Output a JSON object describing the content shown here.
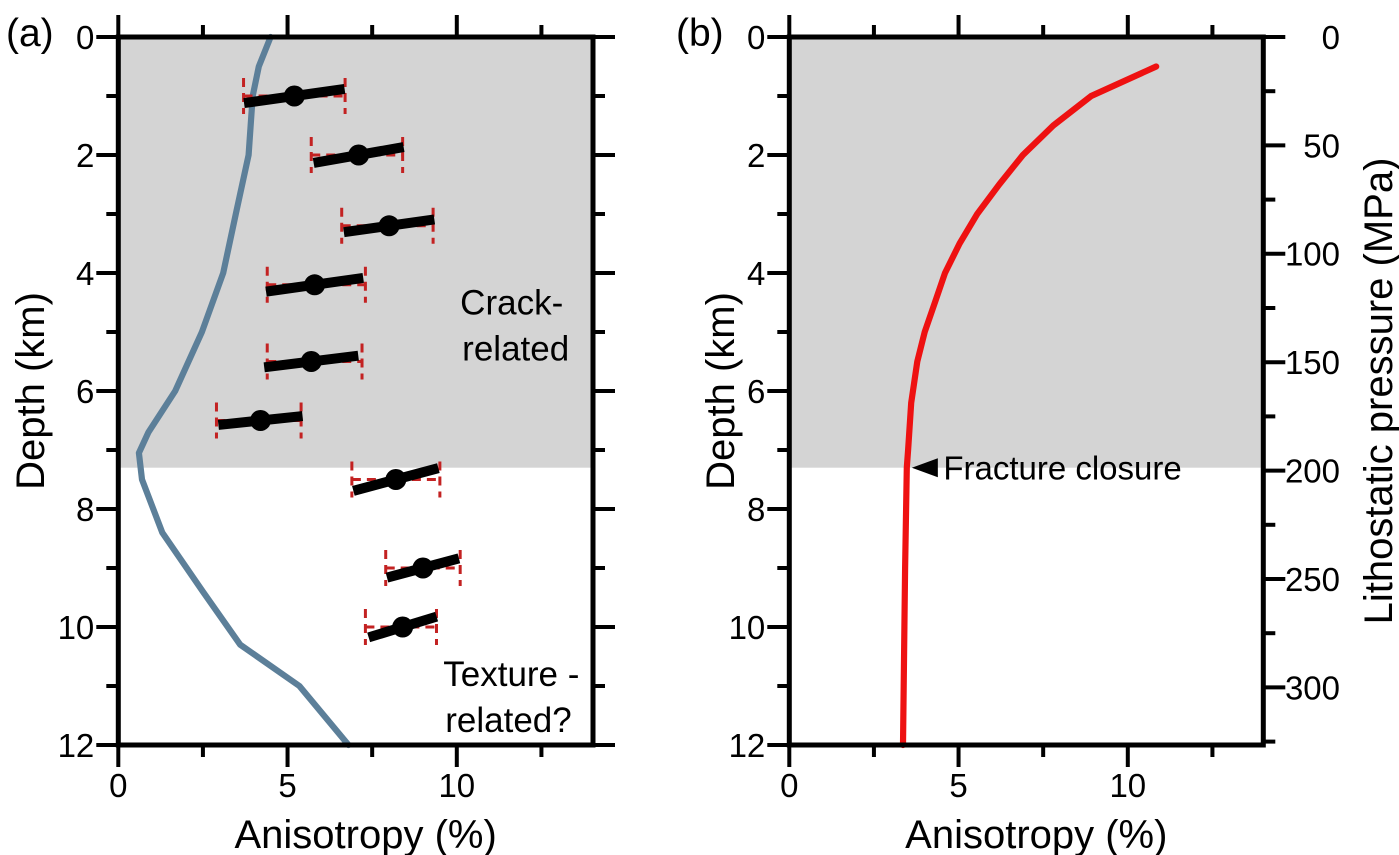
{
  "figure": {
    "panel_a_label": "(a)",
    "panel_b_label": "(b)"
  },
  "colors": {
    "background": "#ffffff",
    "shaded_region": "#d4d4d4",
    "model_curve_blue": "#5c7f99",
    "crack_model_red": "#ee1111",
    "errorbar_red": "#c32222",
    "marker_black": "#000000",
    "axis_black": "#000000"
  },
  "chart_data": [
    {
      "panel": "a",
      "type": "line",
      "title": "",
      "xlabel": "Anisotropy (%)",
      "ylabel": "Depth (km)",
      "xlim": [
        0,
        14
      ],
      "ylim": [
        12,
        0
      ],
      "grid": false,
      "x_ticks": {
        "values": [
          0,
          5,
          10
        ],
        "labels": [
          "0",
          "5",
          "10"
        ],
        "minor": [
          2.5,
          7.5,
          12.5
        ]
      },
      "y_ticks": {
        "values": [
          0,
          2,
          4,
          6,
          8,
          10,
          12
        ],
        "labels": [
          "0",
          "2",
          "4",
          "6",
          "8",
          "10",
          "12"
        ],
        "minor": [
          1,
          3,
          5,
          7,
          9,
          11
        ]
      },
      "shaded_region": {
        "depth_from_km": 0,
        "depth_to_km": 7.3
      },
      "series": [
        {
          "name": "velocity-model-curve",
          "type": "line",
          "color": "#5c7f99",
          "points_anisotropy_depth": [
            [
              4.5,
              0
            ],
            [
              4.15,
              0.5
            ],
            [
              3.97,
              1.0
            ],
            [
              3.85,
              2.0
            ],
            [
              3.47,
              3.0
            ],
            [
              3.1,
              4.0
            ],
            [
              2.47,
              5.0
            ],
            [
              1.68,
              6.0
            ],
            [
              0.89,
              6.7
            ],
            [
              0.61,
              7.05
            ],
            [
              0.7,
              7.5
            ],
            [
              1.3,
              8.4
            ],
            [
              2.5,
              9.4
            ],
            [
              3.6,
              10.3
            ],
            [
              5.35,
              11.0
            ],
            [
              6.8,
              12.0
            ]
          ]
        },
        {
          "name": "anisotropy-measurements",
          "type": "scatter",
          "marker_color": "#000000",
          "errorbar_color": "#c32222",
          "points": [
            {
              "anisotropy_pct": 5.2,
              "depth_km": 1.0,
              "err_low": 3.7,
              "err_high": 6.7,
              "bar_tilt_deg": -8
            },
            {
              "anisotropy_pct": 7.1,
              "depth_km": 2.0,
              "err_low": 5.7,
              "err_high": 8.4,
              "bar_tilt_deg": -10
            },
            {
              "anisotropy_pct": 8.0,
              "depth_km": 3.2,
              "err_low": 6.6,
              "err_high": 9.3,
              "bar_tilt_deg": -8
            },
            {
              "anisotropy_pct": 5.8,
              "depth_km": 4.2,
              "err_low": 4.4,
              "err_high": 7.3,
              "bar_tilt_deg": -8
            },
            {
              "anisotropy_pct": 5.7,
              "depth_km": 5.5,
              "err_low": 4.4,
              "err_high": 7.2,
              "bar_tilt_deg": -7
            },
            {
              "anisotropy_pct": 4.2,
              "depth_km": 6.5,
              "err_low": 2.9,
              "err_high": 5.4,
              "bar_tilt_deg": -6
            },
            {
              "anisotropy_pct": 8.2,
              "depth_km": 7.5,
              "err_low": 6.9,
              "err_high": 9.5,
              "bar_tilt_deg": -15
            },
            {
              "anisotropy_pct": 9.0,
              "depth_km": 9.0,
              "err_low": 7.9,
              "err_high": 10.1,
              "bar_tilt_deg": -15
            },
            {
              "anisotropy_pct": 8.4,
              "depth_km": 10.0,
              "err_low": 7.3,
              "err_high": 9.4,
              "bar_tilt_deg": -17
            }
          ]
        }
      ],
      "annotations": [
        {
          "name": "crack-related-label",
          "lines": [
            "Crack-",
            "related"
          ],
          "x_pct": 10.1,
          "depth_km": 4.7
        },
        {
          "name": "texture-related-label",
          "lines": [
            "Texture -",
            "related?"
          ],
          "x_pct": 9.6,
          "depth_km": 11.0
        }
      ]
    },
    {
      "panel": "b",
      "type": "line",
      "title": "",
      "xlabel": "Anisotropy (%)",
      "ylabel": "Depth (km)",
      "y2label": "Lithostatic pressure (MPa)",
      "xlim": [
        0,
        14
      ],
      "ylim": [
        12,
        0
      ],
      "y2lim_mpa": [
        0,
        326
      ],
      "grid": false,
      "x_ticks": {
        "values": [
          0,
          5,
          10
        ],
        "labels": [
          "0",
          "5",
          "10"
        ],
        "minor": [
          2.5,
          7.5,
          12.5
        ]
      },
      "y_ticks": {
        "values": [
          0,
          2,
          4,
          6,
          8,
          10,
          12
        ],
        "labels": [
          "0",
          "2",
          "4",
          "6",
          "8",
          "10",
          "12"
        ],
        "minor": [
          1,
          3,
          5,
          7,
          9,
          11
        ]
      },
      "y2_ticks": {
        "values": [
          0,
          50,
          100,
          150,
          200,
          250,
          300
        ],
        "labels": [
          "0",
          "50",
          "100",
          "150",
          "200",
          "250",
          "300"
        ],
        "minor": [
          25,
          75,
          125,
          175,
          225,
          275,
          325
        ],
        "mpa_per_km": 27.2
      },
      "shaded_region": {
        "depth_from_km": 0,
        "depth_to_km": 7.3
      },
      "series": [
        {
          "name": "crack-anisotropy-model-curve",
          "type": "line",
          "color": "#ee1111",
          "points_anisotropy_depth": [
            [
              10.84,
              0.5
            ],
            [
              8.92,
              1.0
            ],
            [
              7.8,
              1.5
            ],
            [
              6.9,
              2.0
            ],
            [
              6.2,
              2.5
            ],
            [
              5.55,
              3.0
            ],
            [
              5.03,
              3.5
            ],
            [
              4.6,
              4.0
            ],
            [
              4.3,
              4.5
            ],
            [
              4.0,
              5.0
            ],
            [
              3.78,
              5.5
            ],
            [
              3.6,
              6.2
            ],
            [
              3.51,
              7.0
            ],
            [
              3.47,
              7.3
            ],
            [
              3.45,
              8.0
            ],
            [
              3.42,
              9.0
            ],
            [
              3.4,
              10.0
            ],
            [
              3.38,
              11.0
            ],
            [
              3.36,
              12.0
            ]
          ]
        }
      ],
      "annotations": [
        {
          "name": "fracture-closure-label",
          "text": "Fracture closure",
          "arrow": "left",
          "x_pct": 4.55,
          "depth_km": 7.3
        }
      ]
    }
  ]
}
